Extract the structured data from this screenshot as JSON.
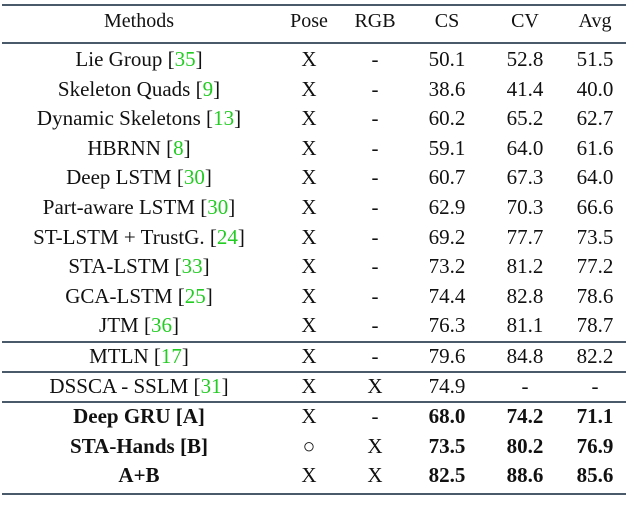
{
  "header": {
    "methods": "Methods",
    "pose": "Pose",
    "rgb": "RGB",
    "cs": "CS",
    "cv": "CV",
    "avg": "Avg"
  },
  "groups": [
    [
      {
        "name": "Lie Group [",
        "ref": "35",
        "close": "]",
        "pose": "X",
        "rgb": "-",
        "cs": "50.1",
        "cv": "52.8",
        "avg": "51.5"
      },
      {
        "name": "Skeleton Quads [",
        "ref": "9",
        "close": "]",
        "pose": "X",
        "rgb": "-",
        "cs": "38.6",
        "cv": "41.4",
        "avg": "40.0"
      },
      {
        "name": "Dynamic Skeletons [",
        "ref": "13",
        "close": "]",
        "pose": "X",
        "rgb": "-",
        "cs": "60.2",
        "cv": "65.2",
        "avg": "62.7"
      },
      {
        "name": "HBRNN [",
        "ref": "8",
        "close": "]",
        "pose": "X",
        "rgb": "-",
        "cs": "59.1",
        "cv": "64.0",
        "avg": "61.6"
      },
      {
        "name": "Deep LSTM [",
        "ref": "30",
        "close": "]",
        "pose": "X",
        "rgb": "-",
        "cs": "60.7",
        "cv": "67.3",
        "avg": "64.0"
      },
      {
        "name": "Part-aware LSTM [",
        "ref": "30",
        "close": "]",
        "pose": "X",
        "rgb": "-",
        "cs": "62.9",
        "cv": "70.3",
        "avg": "66.6"
      },
      {
        "name": "ST-LSTM + TrustG. [",
        "ref": "24",
        "close": "]",
        "pose": "X",
        "rgb": "-",
        "cs": "69.2",
        "cv": "77.7",
        "avg": "73.5"
      },
      {
        "name": "STA-LSTM [",
        "ref": "33",
        "close": "]",
        "pose": "X",
        "rgb": "-",
        "cs": "73.2",
        "cv": "81.2",
        "avg": "77.2"
      },
      {
        "name": "GCA-LSTM [",
        "ref": "25",
        "close": "]",
        "pose": "X",
        "rgb": "-",
        "cs": "74.4",
        "cv": "82.8",
        "avg": "78.6"
      },
      {
        "name": "JTM [",
        "ref": "36",
        "close": "]",
        "pose": "X",
        "rgb": "-",
        "cs": "76.3",
        "cv": "81.1",
        "avg": "78.7"
      }
    ],
    [
      {
        "name": "MTLN [",
        "ref": "17",
        "close": "]",
        "pose": "X",
        "rgb": "-",
        "cs": "79.6",
        "cv": "84.8",
        "avg": "82.2"
      }
    ],
    [
      {
        "name": "DSSCA - SSLM [",
        "ref": "31",
        "close": "]",
        "pose": "X",
        "rgb": "X",
        "cs": "74.9",
        "cv": "-",
        "avg": "-"
      }
    ],
    [
      {
        "name": "Deep GRU [A]",
        "ref": "",
        "close": "",
        "pose": "X",
        "rgb": "-",
        "cs": "68.0",
        "cv": "74.2",
        "avg": "71.1",
        "bold": true
      },
      {
        "name": "STA-Hands [B]",
        "ref": "",
        "close": "",
        "pose": "○",
        "rgb": "X",
        "cs": "73.5",
        "cv": "80.2",
        "avg": "76.9",
        "bold": true
      },
      {
        "name": "A+B",
        "ref": "",
        "close": "",
        "pose": "X",
        "rgb": "X",
        "cs": "82.5",
        "cv": "88.6",
        "avg": "85.6",
        "bold": true
      }
    ]
  ],
  "colors": {
    "ref": "#22cc22",
    "rule": "#4a5a6a"
  }
}
